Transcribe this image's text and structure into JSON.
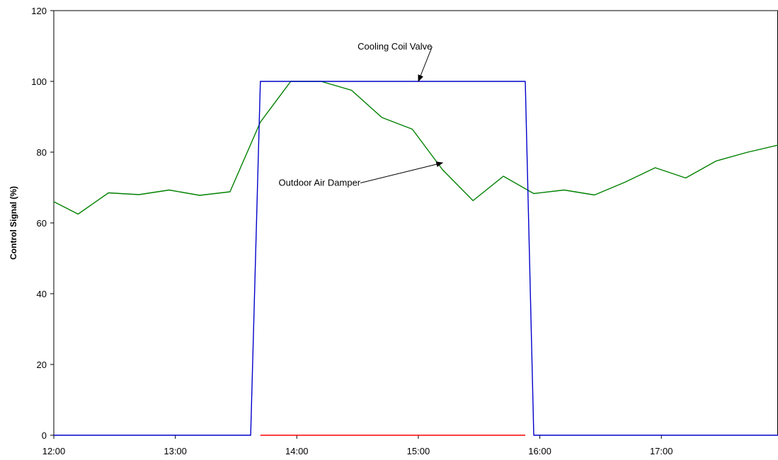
{
  "chart_data": {
    "type": "line",
    "title": "",
    "xlabel": "",
    "ylabel": "Control Signal (%)",
    "ylim": [
      0,
      120
    ],
    "yticks": [
      0,
      20,
      40,
      60,
      80,
      100,
      120
    ],
    "xlim_hours": [
      12.0,
      17.96
    ],
    "xtick_labels": [
      "12:00",
      "13:00",
      "14:00",
      "15:00",
      "16:00",
      "17:00"
    ],
    "xtick_hours": [
      12,
      13,
      14,
      15,
      16,
      17
    ],
    "grid": false,
    "legend": "none",
    "series": [
      {
        "name": "Cooling Coil Valve",
        "color": "#0000cc",
        "x_hours": [
          12.0,
          13.62,
          13.7,
          15.88,
          15.95,
          17.96
        ],
        "values": [
          0,
          0,
          100,
          100,
          0,
          0
        ]
      },
      {
        "name": "Outdoor Air Damper",
        "color": "#008000",
        "x_hours": [
          12.0,
          12.2,
          12.45,
          12.7,
          12.95,
          13.2,
          13.45,
          13.7,
          13.95,
          14.2,
          14.45,
          14.7,
          14.95,
          15.2,
          15.45,
          15.7,
          15.95,
          16.2,
          16.45,
          16.7,
          16.95,
          17.2,
          17.45,
          17.7,
          17.96
        ],
        "values": [
          66,
          62.5,
          68.5,
          68,
          69.3,
          67.8,
          68.8,
          88.5,
          100,
          100,
          97.5,
          89.8,
          86.5,
          75,
          66.3,
          73.2,
          68.3,
          69.3,
          67.9,
          71.5,
          75.6,
          72.7,
          77.5,
          79.9,
          82
        ]
      },
      {
        "name": "",
        "color": "#ff0000",
        "x_hours": [
          13.7,
          15.88
        ],
        "values": [
          0,
          0
        ]
      }
    ],
    "annotations": [
      {
        "text": "Cooling Coil Valve",
        "x_hour": 14.5,
        "y": 109,
        "arrow_to_hour": 15.0,
        "arrow_to_y": 100
      },
      {
        "text": "Outdoor Air Damper",
        "x_hour": 13.85,
        "y": 70.5,
        "arrow_to_hour": 15.2,
        "arrow_to_y": 77
      }
    ]
  }
}
